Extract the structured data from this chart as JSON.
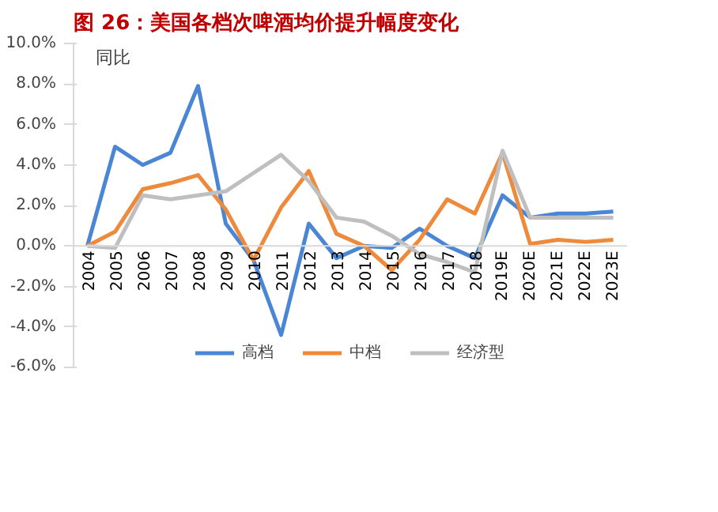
{
  "chart_data": {
    "type": "line",
    "title": "图 26：美国各档次啤酒均价提升幅度变化",
    "annotations": [
      "同比"
    ],
    "categories": [
      "2004",
      "2005",
      "2006",
      "2007",
      "2008",
      "2009",
      "2010",
      "2011",
      "2012",
      "2013",
      "2014",
      "2015",
      "2016",
      "2017",
      "2018",
      "2019E",
      "2020E",
      "2021E",
      "2022E",
      "2023E"
    ],
    "series": [
      {
        "name": "高档",
        "color": "#4a86d4",
        "values": [
          0,
          4.9,
          4.0,
          4.6,
          7.9,
          1.1,
          -0.7,
          -4.4,
          1.1,
          -0.6,
          0.0,
          -0.1,
          0.85,
          0.0,
          -0.6,
          2.5,
          1.4,
          1.6,
          1.6,
          1.7
        ]
      },
      {
        "name": "中档",
        "color": "#ee8a3c",
        "values": [
          0,
          0.7,
          2.8,
          3.1,
          3.5,
          1.8,
          -0.7,
          1.9,
          3.7,
          0.6,
          0.0,
          -1.2,
          0.3,
          2.3,
          1.6,
          4.6,
          0.1,
          0.3,
          0.2,
          0.3
        ]
      },
      {
        "name": "经济型",
        "color": "#bfbfbf",
        "values": [
          0,
          -0.1,
          2.5,
          2.3,
          2.5,
          2.7,
          3.6,
          4.5,
          3.2,
          1.4,
          1.2,
          0.5,
          -0.4,
          -0.8,
          -1.3,
          4.7,
          1.4,
          1.4,
          1.4,
          1.4
        ]
      }
    ],
    "ylim": [
      -6,
      10
    ],
    "yticks": [
      {
        "value": -6,
        "label": "-6.0%"
      },
      {
        "value": -4,
        "label": "-4.0%"
      },
      {
        "value": -2,
        "label": "-2.0%"
      },
      {
        "value": 0,
        "label": "0.0%"
      },
      {
        "value": 2,
        "label": "2.0%"
      },
      {
        "value": 4,
        "label": "4.0%"
      },
      {
        "value": 6,
        "label": "6.0%"
      },
      {
        "value": 8,
        "label": "8.0%"
      },
      {
        "value": 10,
        "label": "10.0%"
      }
    ],
    "legend": "bottom",
    "grid": false,
    "marker": "none",
    "line_style": "solid"
  }
}
